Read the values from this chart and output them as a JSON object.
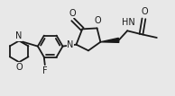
{
  "bg_color": "#e8e8e8",
  "line_color": "#1a1a1a",
  "line_width": 1.3,
  "figsize": [
    1.94,
    1.07
  ],
  "dpi": 100,
  "font_size": 6.5,
  "font_size_atom": 7.0,
  "xlim": [
    0,
    10.0
  ],
  "ylim": [
    0,
    5.5
  ]
}
